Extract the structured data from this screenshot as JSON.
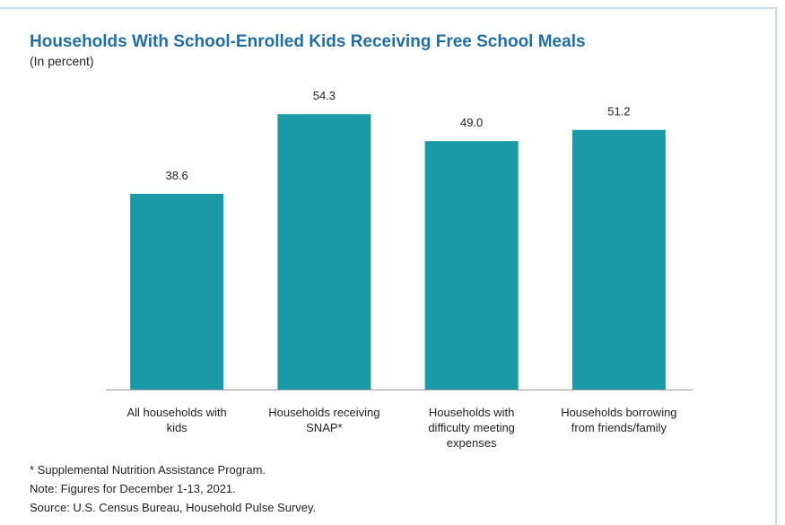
{
  "chart_data": {
    "type": "bar",
    "title": "Households With School-Enrolled Kids Receiving Free School Meals",
    "subtitle": "(In percent)",
    "categories": [
      "All households with kids",
      "Households receiving SNAP*",
      "Households with difficulty meeting expenses",
      "Households borrowing from friends/family"
    ],
    "values": [
      38.6,
      54.3,
      49.0,
      51.2
    ],
    "value_labels": [
      "38.6",
      "54.3",
      "49.0",
      "51.2"
    ],
    "color": "#1a9aa6",
    "ylim": [
      0,
      60
    ],
    "notes": [
      "* Supplemental Nutrition Assistance Program.",
      "Note: Figures for December 1-13, 2021.",
      "Source: U.S. Census Bureau, Household Pulse Survey."
    ]
  }
}
